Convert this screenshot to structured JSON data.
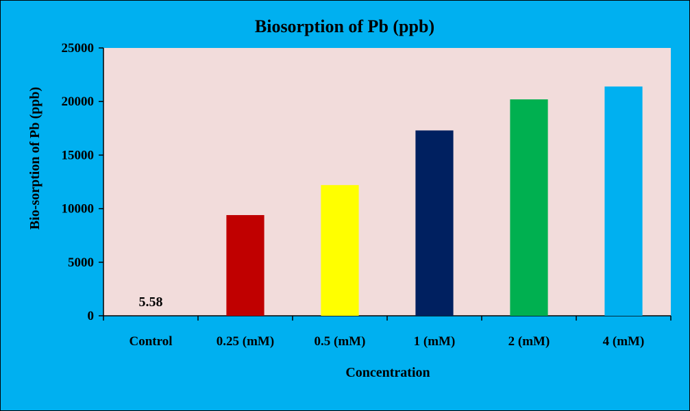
{
  "chart_data": {
    "type": "bar",
    "title": "Biosorption of  Pb (ppb)",
    "xlabel": "Concentration",
    "ylabel": "Bio-sorption of Pb (ppb)",
    "categories": [
      "Control",
      "0.25 (mM)",
      "0.5 (mM)",
      "1 (mM)",
      "2 (mM)",
      "4  (mM)"
    ],
    "values": [
      5.58,
      9400,
      12200,
      17300,
      20200,
      21400
    ],
    "data_labels": [
      "5.58",
      "",
      "",
      "",
      "",
      ""
    ],
    "ylim": [
      0,
      25000
    ],
    "yticks": [
      0,
      5000,
      10000,
      15000,
      20000,
      25000
    ],
    "grid": false,
    "legend": "none",
    "colors": {
      "background": "#00B0F0",
      "plot_area": "#F2DCDB",
      "bars": [
        "#C00000",
        "#C00000",
        "#FFFF00",
        "#002060",
        "#00B050",
        "#00B0F0"
      ]
    }
  }
}
